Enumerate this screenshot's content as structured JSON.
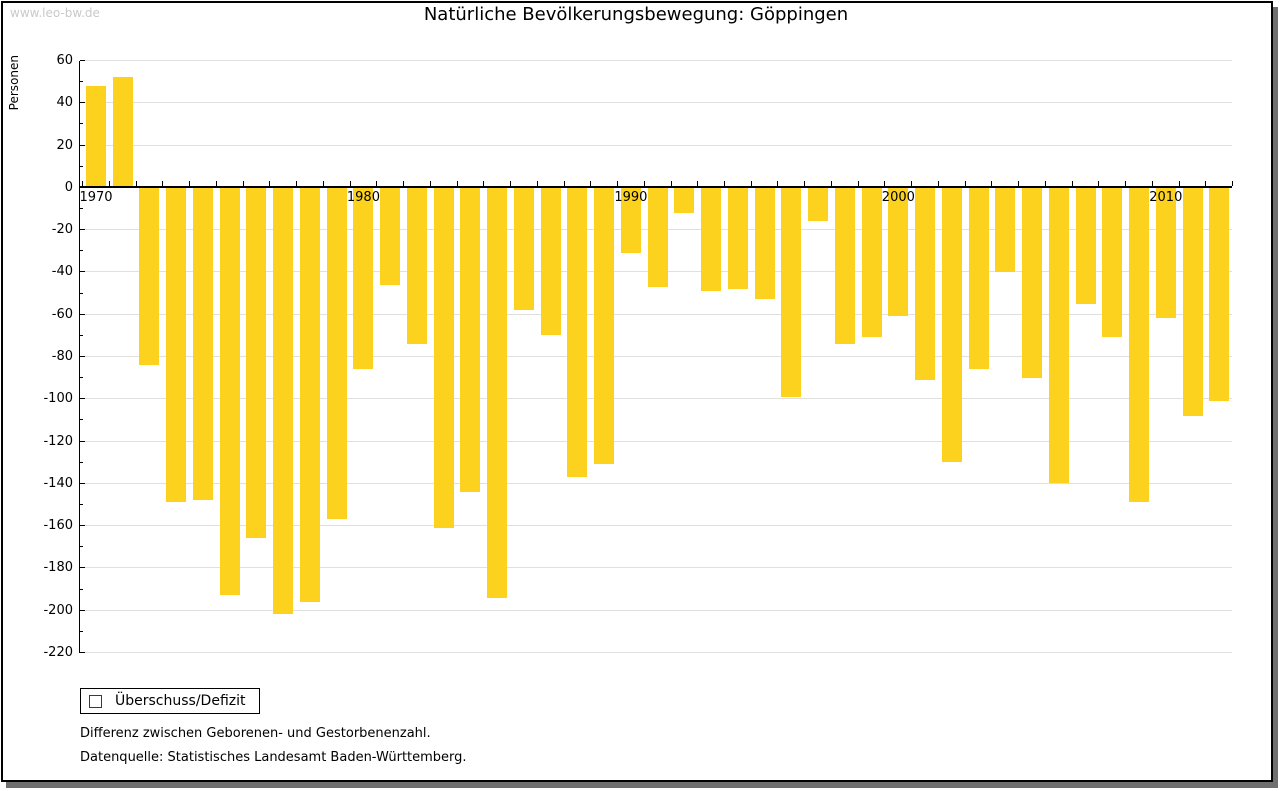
{
  "watermark": "www.leo-bw.de",
  "title": "Natürliche Bevölkerungsbewegung: Göppingen",
  "legend": {
    "label": "Überschuss/Defizit",
    "swatch_color": "#fcd21f"
  },
  "footnotes": {
    "line1": "Differenz zwischen Geborenen- und Gestorbenenzahl.",
    "line2": "Datenquelle: Statistisches Landesamt Baden-Württemberg."
  },
  "colors": {
    "bar": "#fcd21f",
    "grid": "#e0e0e0",
    "axis": "#000000",
    "frame_shadow": "#6f6f6f",
    "watermark": "#c9c9c9"
  },
  "chart_data": {
    "type": "bar",
    "title": "Natürliche Bevölkerungsbewegung: Göppingen",
    "xlabel": "",
    "ylabel": "Personen",
    "ylim": [
      -220,
      60
    ],
    "ytick_step": 20,
    "ytick_minor_step": 10,
    "grid": true,
    "legend_position": "bottom-left",
    "x_tick_labels": [
      1970,
      1980,
      1990,
      2000,
      2010
    ],
    "series_name": "Überschuss/Defizit",
    "years": [
      1970,
      1971,
      1972,
      1973,
      1974,
      1975,
      1976,
      1977,
      1978,
      1979,
      1980,
      1981,
      1982,
      1983,
      1984,
      1985,
      1986,
      1987,
      1988,
      1989,
      1990,
      1991,
      1992,
      1993,
      1994,
      1995,
      1996,
      1997,
      1998,
      1999,
      2000,
      2001,
      2002,
      2003,
      2004,
      2005,
      2006,
      2007,
      2008,
      2009,
      2010,
      2011,
      2012
    ],
    "values": [
      48,
      52,
      -84,
      -149,
      -148,
      -193,
      -166,
      -202,
      -196,
      -157,
      -86,
      -46,
      -74,
      -161,
      -144,
      -194,
      -58,
      -70,
      -137,
      -131,
      -31,
      -47,
      -12,
      -49,
      -48,
      -53,
      -99,
      -16,
      -74,
      -71,
      -61,
      -91,
      -130,
      -86,
      -40,
      -90,
      -140,
      -55,
      -71,
      -149,
      -62,
      -108,
      -101
    ]
  }
}
